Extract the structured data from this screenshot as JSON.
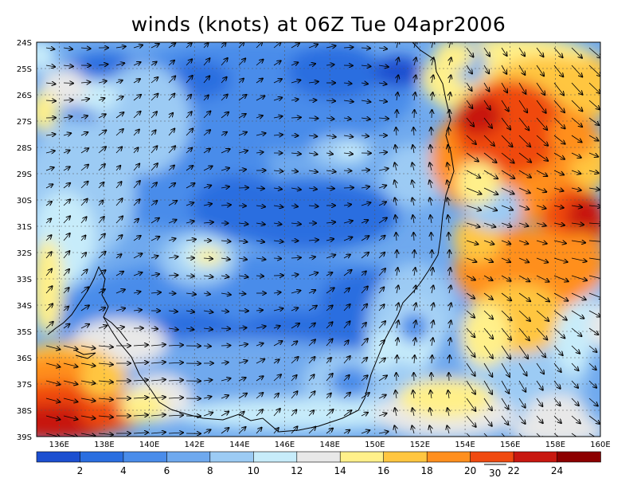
{
  "title": "winds (knots) at 06Z Tue 04apr2006",
  "map": {
    "lon_range": [
      135,
      160
    ],
    "lat_range": [
      -39,
      -24
    ],
    "lat_ticks": [
      "24S",
      "25S",
      "26S",
      "27S",
      "28S",
      "29S",
      "30S",
      "31S",
      "32S",
      "33S",
      "34S",
      "35S",
      "36S",
      "37S",
      "38S",
      "39S"
    ],
    "lon_ticks": [
      "136E",
      "138E",
      "140E",
      "142E",
      "144E",
      "146E",
      "148E",
      "150E",
      "152E",
      "154E",
      "156E",
      "158E",
      "160E"
    ],
    "gridlines": true
  },
  "colorbar": {
    "labels": [
      "2",
      "4",
      "6",
      "8",
      "10",
      "12",
      "14",
      "16",
      "18",
      "20",
      "22",
      "24"
    ],
    "colors": [
      "#1c4fd0",
      "#2a6ee0",
      "#4a8cea",
      "#6fa9ee",
      "#9ccbf4",
      "#c7ecfa",
      "#e8e8e8",
      "#fff08a",
      "#ffc640",
      "#ff8f1e",
      "#f04a10",
      "#c81810",
      "#8c0000"
    ]
  },
  "reference_vector": {
    "label": "30"
  }
}
